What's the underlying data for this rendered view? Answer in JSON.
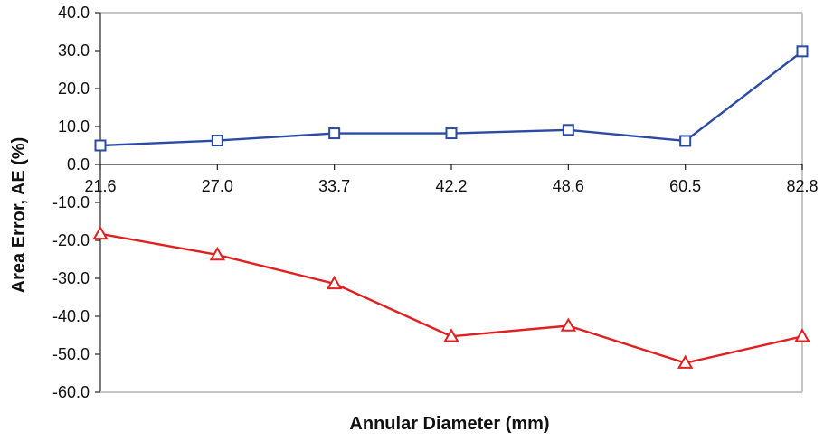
{
  "chart_data": {
    "type": "line",
    "title": "",
    "xlabel": "Annular Diameter (mm)",
    "ylabel": "Area Error, AE (%)",
    "categories": [
      "21.6",
      "27.0",
      "33.7",
      "42.2",
      "48.6",
      "60.5",
      "82.8"
    ],
    "ylim": [
      -60,
      40
    ],
    "yticks": [
      "40.0",
      "30.0",
      "20.0",
      "10.0",
      "0.0",
      "-10.0",
      "-20.0",
      "-30.0",
      "-40.0",
      "-50.0",
      "-60.0"
    ],
    "grid": false,
    "series": [
      {
        "values": [
          5.0,
          6.3,
          8.2,
          8.2,
          9.1,
          6.2,
          29.8
        ],
        "color": "#2b4aa3",
        "marker": "square"
      },
      {
        "values": [
          -18.3,
          -23.8,
          -31.4,
          -45.3,
          -42.5,
          -52.3,
          -45.3
        ],
        "color": "#e02020",
        "marker": "triangle"
      }
    ]
  }
}
